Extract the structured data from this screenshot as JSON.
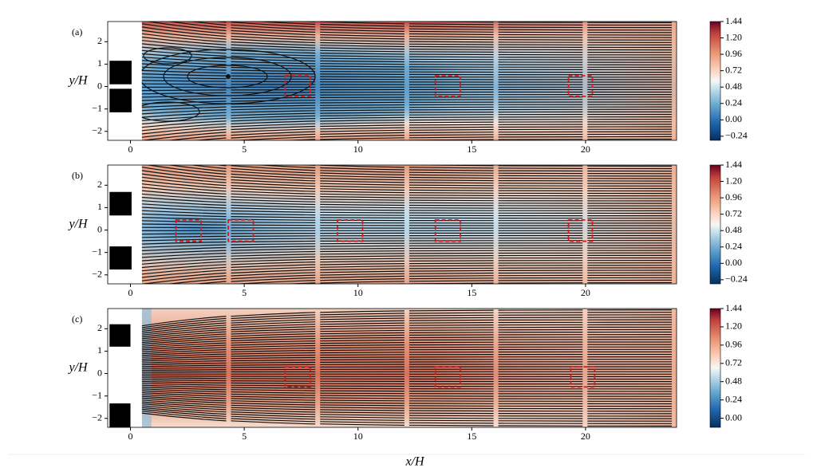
{
  "chart_data": [
    {
      "type": "streamline",
      "label": "(a)",
      "ylabel": "y/H",
      "xlim": [
        -1,
        24
      ],
      "ylim": [
        -2.4,
        2.9
      ],
      "field_x_start": 0.5,
      "xticks": [
        0,
        5,
        10,
        15,
        20
      ],
      "yticks": [
        {
          "value": -2,
          "label": "−2"
        },
        {
          "value": -1,
          "label": "−1"
        },
        0,
        1,
        2
      ],
      "clim": [
        -0.3,
        1.44
      ],
      "cticks": [
        {
          "value": -0.24,
          "label": "−0.24"
        },
        {
          "value": 0,
          "label": "0.00"
        },
        {
          "value": 0.24,
          "label": "0.24"
        },
        {
          "value": 0.48,
          "label": "0.48"
        },
        {
          "value": 0.72,
          "label": "0.72"
        },
        {
          "value": 0.96,
          "label": "0.96"
        },
        {
          "value": 1.2,
          "label": "1.20"
        },
        {
          "value": 1.44,
          "label": "1.44"
        }
      ],
      "obstacles": [
        {
          "x": [
            -0.92,
            0.05
          ],
          "y": [
            0.1,
            1.15
          ]
        },
        {
          "x": [
            -0.92,
            0.05
          ],
          "y": [
            -1.15,
            -0.1
          ]
        }
      ],
      "probes": [
        {
          "x": [
            6.8,
            7.9
          ],
          "y": [
            -0.44,
            0.48
          ]
        },
        {
          "x": [
            13.4,
            14.5
          ],
          "y": [
            -0.44,
            0.48
          ]
        },
        {
          "x": [
            19.25,
            20.3
          ],
          "y": [
            -0.44,
            0.48
          ]
        }
      ]
    },
    {
      "type": "streamline",
      "label": "(b)",
      "ylabel": "y/H",
      "xlim": [
        -1,
        24
      ],
      "ylim": [
        -2.4,
        2.9
      ],
      "field_x_start": 0.5,
      "xticks": [
        0,
        5,
        10,
        15,
        20
      ],
      "yticks": [
        {
          "value": -2,
          "label": "−2"
        },
        {
          "value": -1,
          "label": "−1"
        },
        0,
        1,
        2
      ],
      "clim": [
        -0.3,
        1.44
      ],
      "cticks": [
        {
          "value": -0.24,
          "label": "−0.24"
        },
        {
          "value": 0,
          "label": "0.00"
        },
        {
          "value": 0.24,
          "label": "0.24"
        },
        {
          "value": 0.48,
          "label": "0.48"
        },
        {
          "value": 0.72,
          "label": "0.72"
        },
        {
          "value": 0.96,
          "label": "0.96"
        },
        {
          "value": 1.2,
          "label": "1.20"
        },
        {
          "value": 1.44,
          "label": "1.44"
        }
      ],
      "obstacles": [
        {
          "x": [
            -0.92,
            0.05
          ],
          "y": [
            0.65,
            1.7
          ]
        },
        {
          "x": [
            -0.92,
            0.05
          ],
          "y": [
            -1.76,
            -0.73
          ]
        }
      ],
      "probes": [
        {
          "x": [
            2.0,
            3.1
          ],
          "y": [
            -0.5,
            0.45
          ]
        },
        {
          "x": [
            4.3,
            5.4
          ],
          "y": [
            -0.5,
            0.45
          ]
        },
        {
          "x": [
            9.1,
            10.2
          ],
          "y": [
            -0.5,
            0.45
          ]
        },
        {
          "x": [
            13.4,
            14.5
          ],
          "y": [
            -0.5,
            0.45
          ]
        },
        {
          "x": [
            19.25,
            20.3
          ],
          "y": [
            -0.5,
            0.45
          ]
        }
      ]
    },
    {
      "type": "streamline",
      "label": "(c)",
      "ylabel": "y/H",
      "xlabel": "x/H",
      "xlim": [
        -1,
        24
      ],
      "ylim": [
        -2.4,
        2.9
      ],
      "field_x_start": 0.5,
      "xticks": [
        0,
        5,
        10,
        15,
        20
      ],
      "yticks": [
        {
          "value": -2,
          "label": "−2"
        },
        {
          "value": -1,
          "label": "−1"
        },
        0,
        1,
        2
      ],
      "clim": [
        -0.12,
        1.44
      ],
      "cticks": [
        {
          "value": 0,
          "label": "0.00"
        },
        {
          "value": 0.24,
          "label": "0.24"
        },
        {
          "value": 0.48,
          "label": "0.48"
        },
        {
          "value": 0.72,
          "label": "0.72"
        },
        {
          "value": 0.96,
          "label": "0.96"
        },
        {
          "value": 1.2,
          "label": "1.20"
        },
        {
          "value": 1.44,
          "label": "1.44"
        }
      ],
      "obstacles": [
        {
          "x": [
            -0.92,
            0.0
          ],
          "y": [
            1.2,
            2.2
          ]
        },
        {
          "x": [
            -0.92,
            0.0
          ],
          "y": [
            -2.4,
            -1.33
          ]
        }
      ],
      "probes": [
        {
          "x": [
            6.8,
            7.9
          ],
          "y": [
            -0.6,
            0.3
          ]
        },
        {
          "x": [
            13.4,
            14.5
          ],
          "y": [
            -0.6,
            0.3
          ]
        },
        {
          "x": [
            19.35,
            20.4
          ],
          "y": [
            -0.6,
            0.3
          ]
        }
      ]
    }
  ]
}
